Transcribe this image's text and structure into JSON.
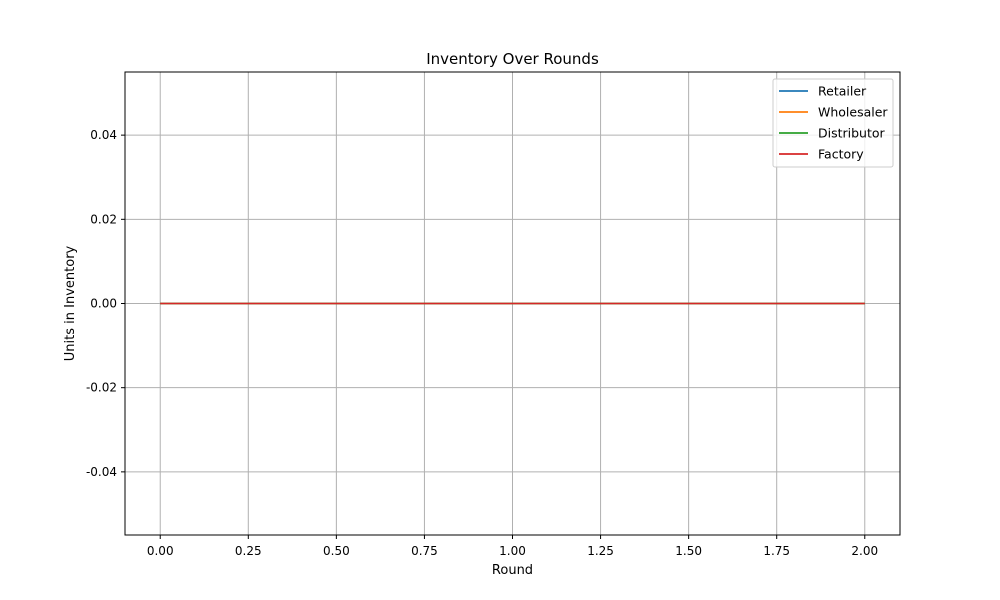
{
  "chart_data": {
    "type": "line",
    "title": "Inventory Over Rounds",
    "xlabel": "Round",
    "ylabel": "Units in Inventory",
    "xlim": [
      -0.1,
      2.1
    ],
    "ylim": [
      -0.055,
      0.055
    ],
    "xticks": [
      0.0,
      0.25,
      0.5,
      0.75,
      1.0,
      1.25,
      1.5,
      1.75,
      2.0
    ],
    "xtick_labels": [
      "0.00",
      "0.25",
      "0.50",
      "0.75",
      "1.00",
      "1.25",
      "1.50",
      "1.75",
      "2.00"
    ],
    "yticks": [
      -0.04,
      -0.02,
      0.0,
      0.02,
      0.04
    ],
    "ytick_labels": [
      "-0.04",
      "-0.02",
      "0.00",
      "0.02",
      "0.04"
    ],
    "grid": true,
    "legend_position": "top-right",
    "x": [
      0,
      1,
      2
    ],
    "series": [
      {
        "name": "Retailer",
        "color": "#1f77b4",
        "values": [
          0,
          0,
          0
        ]
      },
      {
        "name": "Wholesaler",
        "color": "#ff7f0e",
        "values": [
          0,
          0,
          0
        ]
      },
      {
        "name": "Distributor",
        "color": "#2ca02c",
        "values": [
          0,
          0,
          0
        ]
      },
      {
        "name": "Factory",
        "color": "#d62728",
        "values": [
          0,
          0,
          0
        ]
      }
    ]
  }
}
